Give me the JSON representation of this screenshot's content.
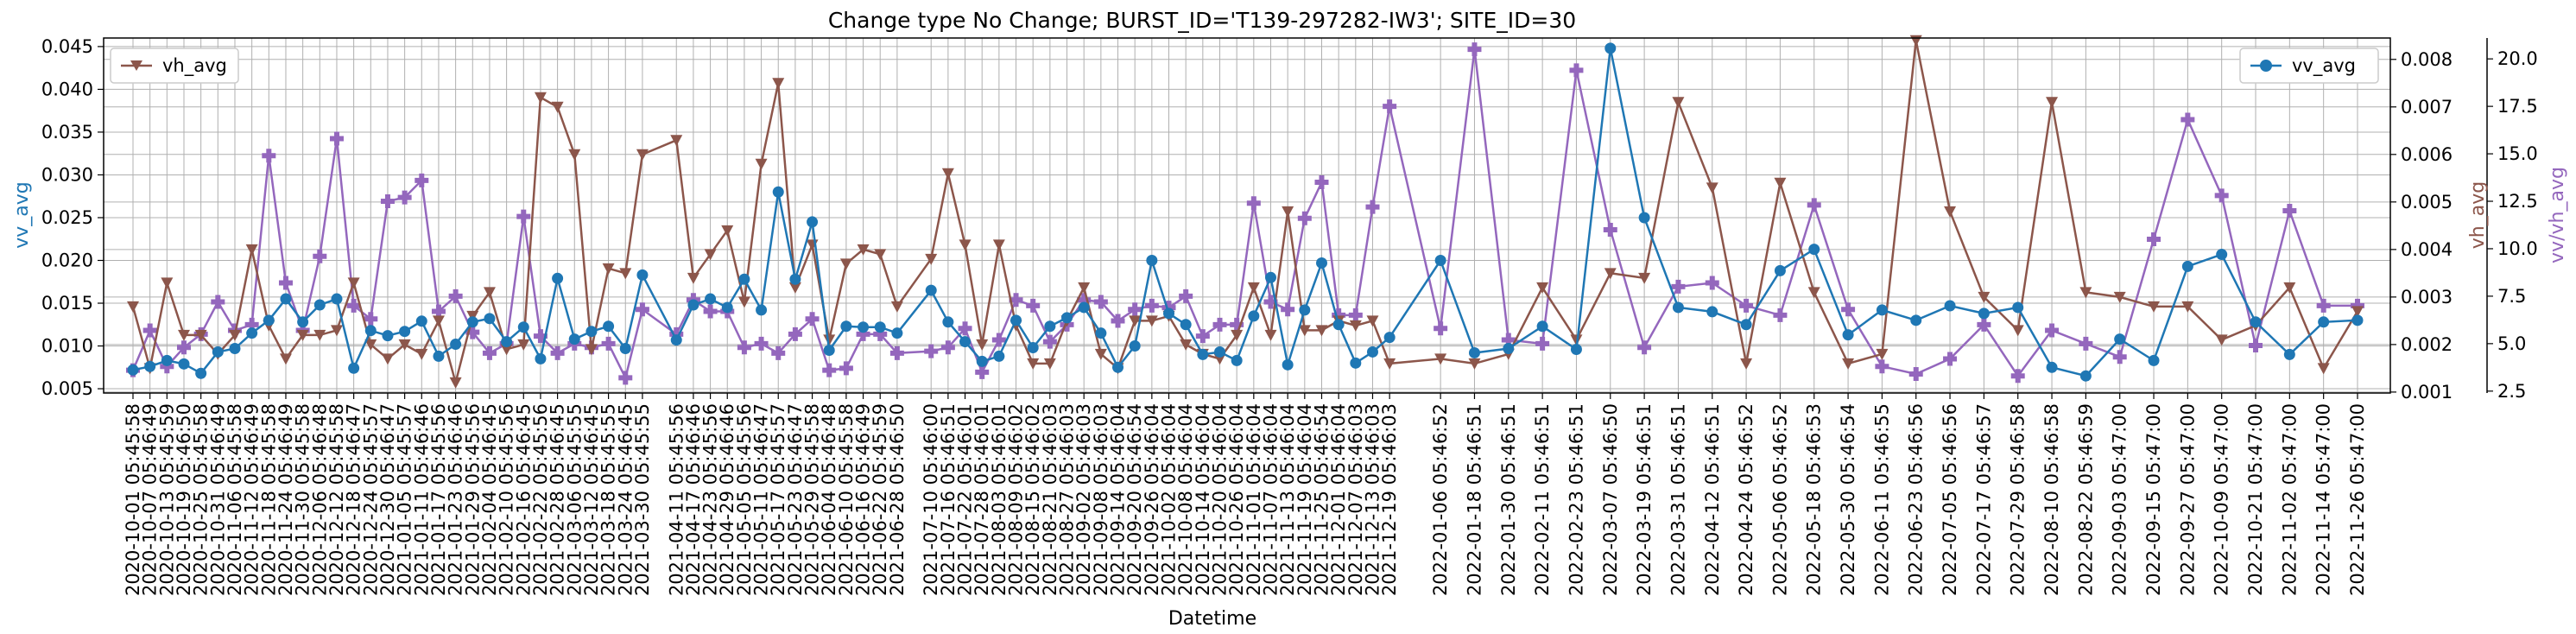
{
  "chart_data": {
    "type": "line",
    "title": "Change type No Change; BURST_ID='T139-297282-IW3'; SITE_ID=30",
    "xlabel": "Datetime",
    "grid": true,
    "x_tick_labels": [
      "2020-10-01 05:45:58",
      "2020-10-07 05:46:49",
      "2020-10-13 05:45:59",
      "2020-10-19 05:46:50",
      "2020-10-25 05:45:58",
      "2020-10-31 05:46:49",
      "2020-11-06 05:45:58",
      "2020-11-12 05:46:49",
      "2020-11-18 05:45:58",
      "2020-11-24 05:46:49",
      "2020-11-30 05:45:58",
      "2020-12-06 05:46:48",
      "2020-12-12 05:45:58",
      "2020-12-18 05:46:47",
      "2020-12-24 05:45:57",
      "2020-12-30 05:46:47",
      "2021-01-05 05:45:57",
      "2021-01-11 05:46:46",
      "2021-01-17 05:45:56",
      "2021-01-23 05:46:46",
      "2021-01-29 05:45:56",
      "2021-02-04 05:46:45",
      "2021-02-10 05:45:56",
      "2021-02-16 05:46:45",
      "2021-02-22 05:45:56",
      "2021-02-28 05:46:45",
      "2021-03-06 05:45:55",
      "2021-03-12 05:46:45",
      "2021-03-18 05:45:55",
      "2021-03-24 05:46:45",
      "2021-03-30 05:45:55",
      "2021-04-11 05:45:56",
      "2021-04-17 05:46:46",
      "2021-04-23 05:45:56",
      "2021-04-29 05:46:46",
      "2021-05-05 05:45:56",
      "2021-05-11 05:46:47",
      "2021-05-17 05:45:57",
      "2021-05-23 05:46:47",
      "2021-05-29 05:45:58",
      "2021-06-04 05:46:48",
      "2021-06-10 05:45:58",
      "2021-06-16 05:46:49",
      "2021-06-22 05:45:59",
      "2021-06-28 05:46:50",
      "2021-07-10 05:46:00",
      "2021-07-16 05:46:51",
      "2021-07-22 05:46:01",
      "2021-07-28 05:46:01",
      "2021-08-03 05:46:01",
      "2021-08-09 05:46:02",
      "2021-08-15 05:46:02",
      "2021-08-21 05:46:03",
      "2021-08-27 05:46:03",
      "2021-09-02 05:46:03",
      "2021-09-08 05:46:03",
      "2021-09-14 05:46:04",
      "2021-09-20 05:46:54",
      "2021-09-26 05:46:04",
      "2021-10-02 05:46:04",
      "2021-10-08 05:46:04",
      "2021-10-14 05:46:04",
      "2021-10-20 05:46:04",
      "2021-10-26 05:46:04",
      "2021-11-01 05:46:04",
      "2021-11-07 05:46:04",
      "2021-11-13 05:46:04",
      "2021-11-19 05:46:04",
      "2021-11-25 05:46:54",
      "2021-12-01 05:46:04",
      "2021-12-07 05:46:03",
      "2021-12-13 05:46:03",
      "2021-12-19 05:46:03",
      "2022-01-06 05:46:52",
      "2022-01-18 05:46:51",
      "2022-01-30 05:46:51",
      "2022-02-11 05:46:51",
      "2022-02-23 05:46:51",
      "2022-03-07 05:46:50",
      "2022-03-19 05:46:51",
      "2022-03-31 05:46:51",
      "2022-04-12 05:46:51",
      "2022-04-24 05:46:52",
      "2022-05-06 05:46:52",
      "2022-05-18 05:46:53",
      "2022-05-30 05:46:54",
      "2022-06-11 05:46:55",
      "2022-06-23 05:46:56",
      "2022-07-05 05:46:56",
      "2022-07-17 05:46:57",
      "2022-07-29 05:46:58",
      "2022-08-10 05:46:58",
      "2022-08-22 05:46:59",
      "2022-09-03 05:47:00",
      "2022-09-15 05:47:00",
      "2022-09-27 05:47:00",
      "2022-10-09 05:47:00",
      "2022-10-21 05:47:00",
      "2022-11-02 05:47:00",
      "2022-11-14 05:47:00",
      "2022-11-26 05:47:00"
    ],
    "axes": {
      "left": {
        "label": "vv_avg",
        "min": 0.0045,
        "max": 0.046,
        "ticks": [
          "0.005",
          "0.010",
          "0.015",
          "0.020",
          "0.025",
          "0.030",
          "0.035",
          "0.040",
          "0.045"
        ],
        "color": "#1f77b4"
      },
      "right": {
        "label": "vh_avg",
        "min": 0.00098,
        "max": 0.00845,
        "ticks": [
          "0.001",
          "0.002",
          "0.003",
          "0.004",
          "0.005",
          "0.006",
          "0.007",
          "0.008"
        ],
        "color": "#8c564b"
      },
      "right2": {
        "label": "vv/vh_avg",
        "min": 2.4,
        "max": 21.1,
        "ticks": [
          "2.5",
          "5.0",
          "7.5",
          "10.0",
          "12.5",
          "15.0",
          "17.5",
          "20.0"
        ],
        "color": "#9467bd"
      }
    },
    "series": [
      {
        "name": "vv_avg",
        "axis": "left",
        "color": "#1f77b4",
        "marker": "circle",
        "legend": "top-right",
        "values": [
          0.0072,
          0.0076,
          0.0083,
          0.0079,
          0.0068,
          0.0093,
          0.0097,
          0.0115,
          0.013,
          0.0155,
          0.0128,
          0.0148,
          0.0155,
          0.0074,
          0.0118,
          0.0112,
          0.0117,
          0.0129,
          0.0088,
          0.0102,
          0.0128,
          0.0132,
          0.0105,
          0.0122,
          0.0085,
          0.0179,
          0.0108,
          0.0117,
          0.0123,
          0.0097,
          0.0183,
          0.0107,
          0.0148,
          0.0155,
          0.0145,
          0.0178,
          0.0142,
          0.028,
          0.0178,
          0.0245,
          0.0095,
          0.0123,
          0.0122,
          0.0122,
          0.0115,
          0.0165,
          0.0128,
          0.0105,
          0.0082,
          0.0088,
          0.013,
          0.0098,
          0.0123,
          0.0133,
          0.0145,
          0.0115,
          0.0075,
          0.01,
          0.02,
          0.0138,
          0.0125,
          0.009,
          0.0093,
          0.0083,
          0.0135,
          0.018,
          0.0078,
          0.0142,
          0.0197,
          0.0125,
          0.008,
          0.0093,
          0.011,
          0.02,
          0.0092,
          0.0097,
          0.0123,
          0.0096,
          0.0448,
          0.025,
          0.0145,
          0.014,
          0.0125,
          0.0188,
          0.0213,
          0.0113,
          0.0142,
          0.013,
          0.0147,
          0.0138,
          0.0145,
          0.0075,
          0.0065,
          0.0108,
          0.0083,
          0.0193,
          0.0207,
          0.0128,
          0.009,
          0.0128,
          0.013
        ]
      },
      {
        "name": "vh_avg",
        "axis": "right",
        "color": "#8c564b",
        "marker": "triangle-down",
        "legend": "top-left",
        "values": [
          0.0028,
          0.0015,
          0.0033,
          0.0022,
          0.0022,
          0.0018,
          0.0022,
          0.004,
          0.0024,
          0.0017,
          0.0022,
          0.0022,
          0.0023,
          0.0033,
          0.002,
          0.0017,
          0.002,
          0.0018,
          0.0025,
          0.0012,
          0.0026,
          0.0031,
          0.0019,
          0.002,
          0.0072,
          0.007,
          0.006,
          0.0019,
          0.0036,
          0.0035,
          0.006,
          0.0063,
          0.0034,
          0.0039,
          0.0044,
          0.0029,
          0.0058,
          0.0075,
          0.0032,
          0.0041,
          0.0021,
          0.0037,
          0.004,
          0.0039,
          0.0028,
          0.0038,
          0.0056,
          0.0041,
          0.002,
          0.0041,
          0.0024,
          0.0016,
          0.0016,
          0.0025,
          0.0032,
          0.0018,
          0.0015,
          0.0025,
          0.0025,
          0.0026,
          0.002,
          0.0018,
          0.0017,
          0.0022,
          0.0032,
          0.0022,
          0.0048,
          0.0023,
          0.0023,
          0.0025,
          0.0024,
          0.0025,
          0.0016,
          0.0017,
          0.0016,
          0.0018,
          0.0032,
          0.0021,
          0.0035,
          0.0034,
          0.0071,
          0.0053,
          0.0016,
          0.0054,
          0.0031,
          0.0016,
          0.0018,
          0.0084,
          0.0048,
          0.003,
          0.0023,
          0.0071,
          0.0031,
          0.003,
          0.0028,
          0.0028,
          0.0021,
          0.0024,
          0.0032,
          0.0015,
          0.0027
        ]
      },
      {
        "name": "vv/vh_avg",
        "axis": "right2",
        "color": "#9467bd",
        "marker": "plus",
        "legend": "",
        "values": [
          3.6,
          5.7,
          3.8,
          4.8,
          5.5,
          7.2,
          5.7,
          6.0,
          14.9,
          8.2,
          5.7,
          9.6,
          15.8,
          7.0,
          6.3,
          12.5,
          12.7,
          13.6,
          6.7,
          7.5,
          5.6,
          4.5,
          5.0,
          11.7,
          5.4,
          4.5,
          5.0,
          4.8,
          5.0,
          3.2,
          6.8,
          5.5,
          7.3,
          6.7,
          6.7,
          4.8,
          5.0,
          4.5,
          5.5,
          6.3,
          3.6,
          3.7,
          5.5,
          5.5,
          4.5,
          4.6,
          4.8,
          5.8,
          3.5,
          5.2,
          7.3,
          7.0,
          5.1,
          6.0,
          7.3,
          7.2,
          6.2,
          6.8,
          7.0,
          6.9,
          7.5,
          5.4,
          6.0,
          6.0,
          12.4,
          7.2,
          6.8,
          11.6,
          13.5,
          6.5,
          6.5,
          12.2,
          17.5,
          5.8,
          20.5,
          5.2,
          5.0,
          19.4,
          11.0,
          4.8,
          8.0,
          8.2,
          7.0,
          6.5,
          12.3,
          6.8,
          3.8,
          3.4,
          4.2,
          6.0,
          3.3,
          5.7,
          5.0,
          4.3,
          10.5,
          16.8,
          12.8,
          4.9,
          12.0,
          7.0,
          7.0
        ]
      }
    ]
  }
}
